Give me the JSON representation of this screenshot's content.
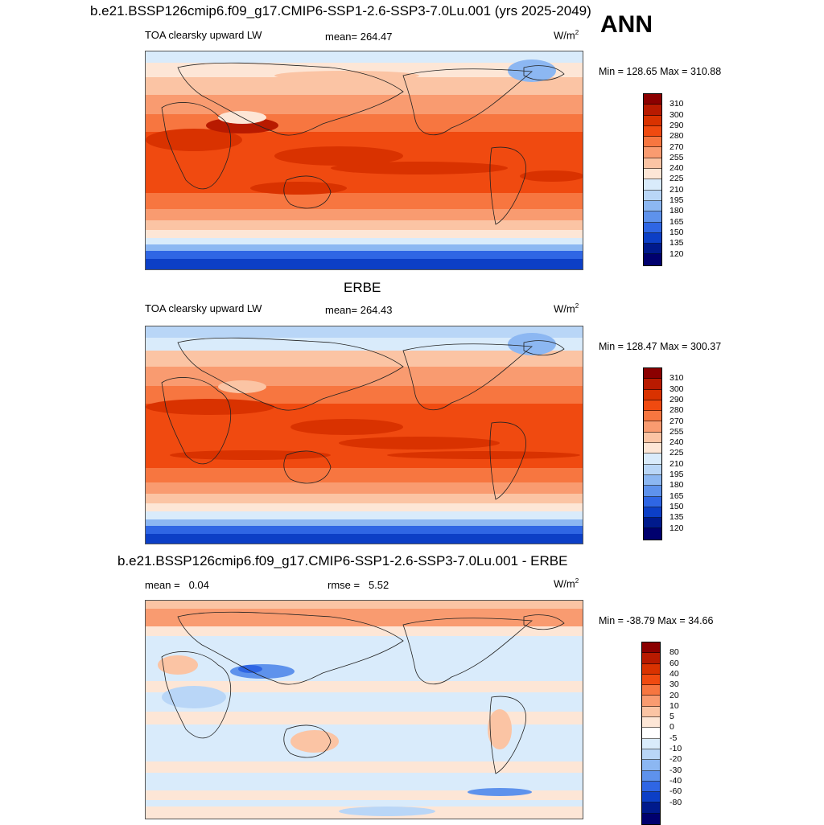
{
  "header": {
    "main_title": "b.e21.BSSP126cmip6.f09_g17.CMIP6-SSP1-2.6-SSP3-7.0Lu.001 (yrs 2025-2049)",
    "season": "ANN"
  },
  "panels": [
    {
      "id": "model",
      "variable": "TOA clearsky upward LW",
      "mean_text": "mean= 264.47",
      "units_base": "W/m",
      "units_exp": "2",
      "minmax_text": "Min = 128.65 Max = 310.88",
      "colorbar_labels": [
        "310",
        "300",
        "290",
        "280",
        "270",
        "255",
        "240",
        "225",
        "210",
        "195",
        "180",
        "165",
        "150",
        "135",
        "120"
      ]
    },
    {
      "id": "obs",
      "title": "ERBE",
      "variable": "TOA clearsky upward LW",
      "mean_text": "mean= 264.43",
      "units_base": "W/m",
      "units_exp": "2",
      "minmax_text": "Min = 128.47 Max = 300.37",
      "colorbar_labels": [
        "310",
        "300",
        "290",
        "280",
        "270",
        "255",
        "240",
        "225",
        "210",
        "195",
        "180",
        "165",
        "150",
        "135",
        "120"
      ]
    },
    {
      "id": "diff",
      "title": "b.e21.BSSP126cmip6.f09_g17.CMIP6-SSP1-2.6-SSP3-7.0Lu.001 - ERBE",
      "mean_label": "mean =",
      "mean_value": "0.04",
      "rmse_label": "rmse =",
      "rmse_value": "5.52",
      "units_base": "W/m",
      "units_exp": "2",
      "minmax_text": "Min = -38.79 Max =  34.66",
      "colorbar_labels": [
        "80",
        "60",
        "40",
        "30",
        "20",
        "10",
        "5",
        "0",
        "-5",
        "-10",
        "-20",
        "-30",
        "-40",
        "-60",
        "-80"
      ]
    }
  ],
  "colors": {
    "abs_scale": [
      "#8b0000",
      "#b81a00",
      "#d93200",
      "#f04a10",
      "#f77640",
      "#f99b70",
      "#fbc4a4",
      "#fde6d6",
      "#d9ebfb",
      "#b9d6f7",
      "#8cb7f2",
      "#5e92ec",
      "#2f66e4",
      "#0c3fc6",
      "#001a8c",
      "#00006e"
    ],
    "diff_scale": [
      "#8b0000",
      "#b81a00",
      "#d93200",
      "#f04a10",
      "#f77640",
      "#f99b70",
      "#fbc4a4",
      "#fde6d6",
      "#ffffff",
      "#d9ebfb",
      "#b9d6f7",
      "#8cb7f2",
      "#5e92ec",
      "#2f66e4",
      "#0c3fc6",
      "#001a8c",
      "#00006e"
    ]
  }
}
